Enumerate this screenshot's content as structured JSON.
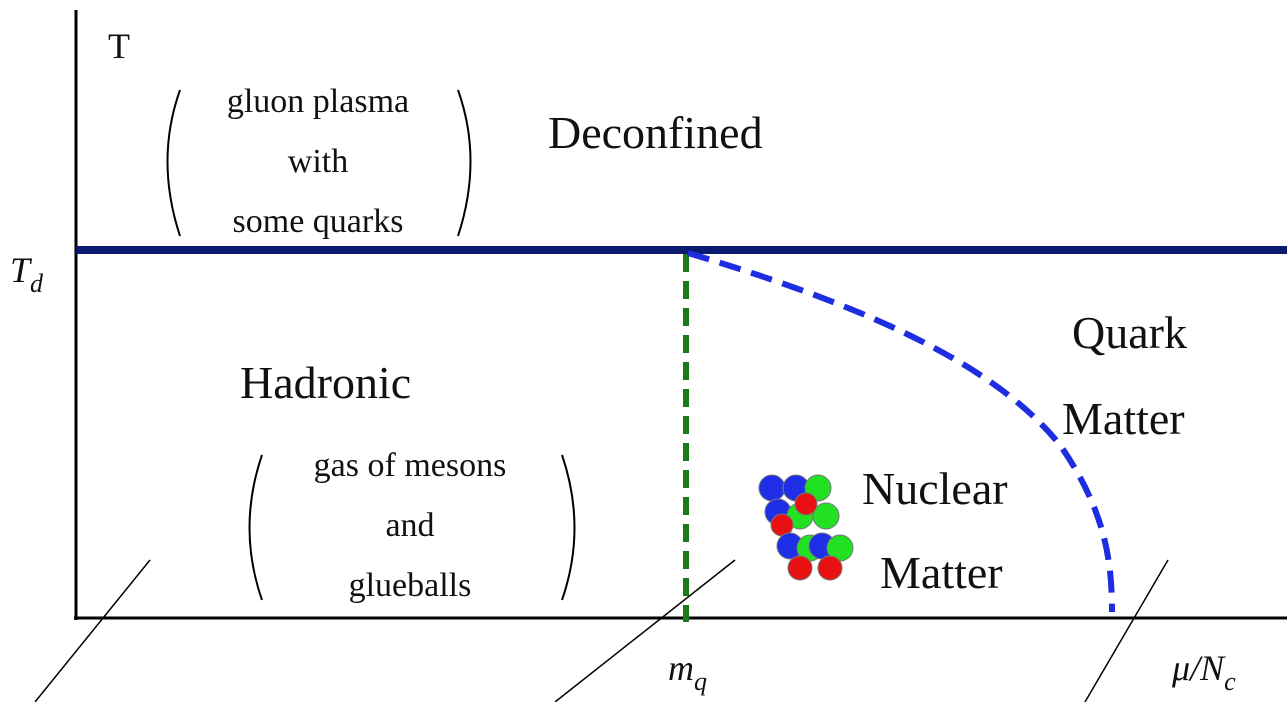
{
  "axes": {
    "y_label": "T",
    "td_label": {
      "main": "T",
      "sub": "d"
    },
    "mq_label": {
      "main": "m",
      "sub": "q"
    },
    "x_label": {
      "main": "μ/N",
      "sub": "c"
    }
  },
  "regions": {
    "deconfined": {
      "title": "Deconfined",
      "note": [
        "gluon plasma",
        "with",
        "some quarks"
      ]
    },
    "hadronic": {
      "title": "Hadronic",
      "note": [
        "gas of mesons",
        "and",
        "glueballs"
      ]
    },
    "quark_matter": [
      "Quark",
      "Matter"
    ],
    "nuclear_matter": [
      "Nuclear",
      "Matter"
    ]
  }
}
